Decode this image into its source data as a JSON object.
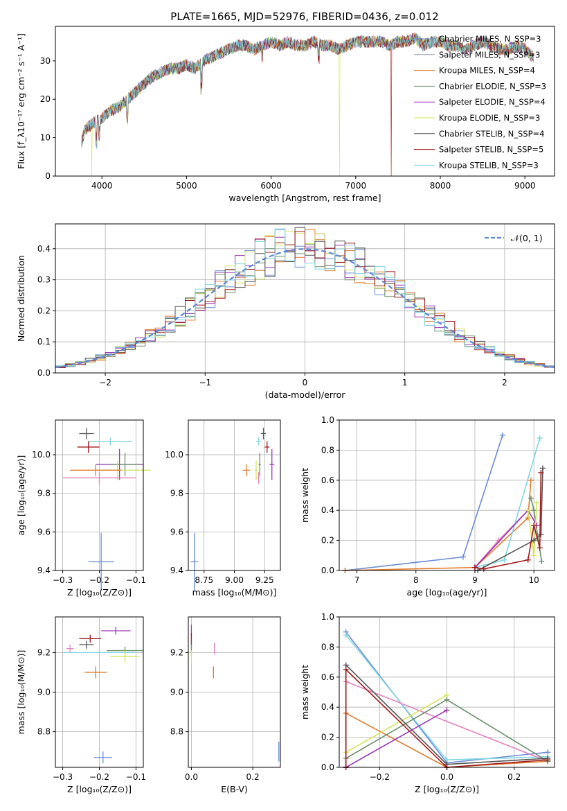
{
  "figure": {
    "title": "PLATE=1665, MJD=52976, FIBERID=0436, z=0.012"
  },
  "chart_data": [
    {
      "type": "line",
      "id": "spectrum",
      "xlabel": "wavelength [Angstrom, rest frame]",
      "ylabel": "Flux [f_λ10⁻¹⁷ erg cm⁻² s⁻¹ A⁻¹]",
      "xlim": [
        3450,
        9350
      ],
      "ylim": [
        0,
        39
      ],
      "xticks": [
        4000,
        5000,
        6000,
        7000,
        8000,
        9000
      ],
      "yticks": [
        0,
        10,
        20,
        30
      ],
      "grid": false,
      "legend_position": "right",
      "continuum": {
        "x": [
          3760,
          3800,
          3900,
          4000,
          4100,
          4200,
          4300,
          4400,
          4500,
          4600,
          4700,
          4800,
          4900,
          5000,
          5100,
          5200,
          5300,
          5400,
          5500,
          5600,
          5700,
          5800,
          5900,
          6000,
          6100,
          6200,
          6300,
          6400,
          6500,
          6600,
          6700,
          6800,
          6900,
          7000,
          7100,
          7200,
          7300,
          7400,
          7500,
          7600,
          7700,
          7800,
          7900,
          8000,
          8100,
          8200,
          8300,
          8400,
          8500,
          8600,
          8700,
          8800,
          8900,
          9000,
          9100
        ],
        "y": [
          9,
          12,
          14,
          15,
          17,
          18,
          20,
          22,
          24,
          26,
          27,
          28,
          28,
          29,
          28,
          30,
          31,
          32,
          33,
          34,
          34,
          33,
          34,
          35,
          34,
          35,
          34,
          34,
          35,
          34,
          34,
          33,
          34,
          35,
          35,
          35,
          35,
          34,
          35,
          35,
          36,
          34,
          35,
          35,
          34,
          34,
          33,
          34,
          35,
          34,
          33,
          33,
          34,
          33,
          31
        ]
      },
      "absorption_dips": [
        {
          "x": 3934,
          "depth": 5
        },
        {
          "x": 3969,
          "depth": 4
        },
        {
          "x": 4300,
          "depth": 5
        },
        {
          "x": 5175,
          "depth": 6
        },
        {
          "x": 5893,
          "depth": 3
        },
        {
          "x": 6563,
          "depth": 3
        }
      ],
      "series": [
        {
          "name": "Chabrier MILES, N_SSP=3",
          "color": "#6a8bd6"
        },
        {
          "name": "Salpeter MILES, N_SSP=3",
          "color": "#9aa0a6"
        },
        {
          "name": "Kroupa MILES, N_SSP=4",
          "color": "#e07b2a"
        },
        {
          "name": "Chabrier ELODIE, N_SSP=3",
          "color": "#6b8f6b"
        },
        {
          "name": "Salpeter ELODIE, N_SSP=4",
          "color": "#9b35b5"
        },
        {
          "name": "Kroupa ELODIE, N_SSP=3",
          "color": "#d4e35a"
        },
        {
          "name": "Chabrier STELIB, N_SSP=4",
          "color": "#555555"
        },
        {
          "name": "Salpeter STELIB, N_SSP=5",
          "color": "#a01a1a"
        },
        {
          "name": "Kroupa STELIB, N_SSP=3",
          "color": "#7fd6e0"
        }
      ],
      "drops": [
        {
          "x": 3880,
          "series": 5
        },
        {
          "x": 6810,
          "series": 5
        },
        {
          "x": 7420,
          "series": 7
        }
      ]
    },
    {
      "type": "histogram",
      "id": "residuals",
      "xlabel": "(data-model)/error",
      "ylabel": "Normed distribution",
      "xlim": [
        -2.5,
        2.5
      ],
      "ylim": [
        0,
        0.48
      ],
      "xticks": [
        -2,
        -1,
        0,
        1,
        2
      ],
      "yticks": [
        0.0,
        0.1,
        0.2,
        0.3,
        0.4
      ],
      "grid": true,
      "legend": "𝒩(0, 1)",
      "gaussian": {
        "mu": 0,
        "sigma": 1,
        "color": "#5b86d6"
      },
      "bin_width": 0.1,
      "bin_start": -2.5,
      "series_colors": [
        "#6a8bd6",
        "#e07b2a",
        "#6b8f6b",
        "#9b35b5",
        "#d4e35a",
        "#555555",
        "#a01a1a",
        "#7fd6e0"
      ]
    },
    {
      "type": "scatter",
      "id": "age-vs-Z",
      "xlabel": "Z [log₁₀(Z/Z⊙)]",
      "ylabel": "age  [log₁₀(age/yr)]",
      "xlim": [
        -0.32,
        -0.08
      ],
      "ylim": [
        9.4,
        10.18
      ],
      "xticks": [
        -0.3,
        -0.2,
        -0.1
      ],
      "yticks": [
        9.4,
        9.6,
        9.8,
        10.0
      ],
      "grid": true,
      "points": [
        {
          "x": -0.235,
          "y": 10.11,
          "xerr": 0.02,
          "yerr": 0.03,
          "color": "#555555"
        },
        {
          "x": -0.17,
          "y": 10.07,
          "xerr": 0.06,
          "yerr": 0.02,
          "color": "#7fd6e0"
        },
        {
          "x": -0.23,
          "y": 10.04,
          "xerr": 0.03,
          "yerr": 0.03,
          "color": "#a01a1a"
        },
        {
          "x": -0.145,
          "y": 9.95,
          "xerr": 0.065,
          "yerr": 0.08,
          "color": "#9b35b5"
        },
        {
          "x": -0.13,
          "y": 9.95,
          "xerr": 0.04,
          "yerr": 0.06,
          "color": "#6b8f6b"
        },
        {
          "x": -0.15,
          "y": 9.92,
          "xerr": 0.09,
          "yerr": 0.05,
          "color": "#d4e35a"
        },
        {
          "x": -0.21,
          "y": 9.92,
          "xerr": 0.07,
          "yerr": 0.03,
          "color": "#e07b2a"
        },
        {
          "x": -0.2,
          "y": 9.88,
          "xerr": 0.1,
          "yerr": 0.03,
          "color": "#e87fbf"
        },
        {
          "x": -0.195,
          "y": 9.445,
          "xerr": 0.035,
          "yerr": 0.15,
          "color": "#6a8bd6"
        }
      ]
    },
    {
      "type": "scatter",
      "id": "age-vs-mass",
      "xlabel": "mass [log₁₀(M/M⊙)]",
      "ylabel": "",
      "xlim": [
        8.62,
        9.38
      ],
      "ylim": [
        9.4,
        10.18
      ],
      "xticks": [
        8.75,
        9.0,
        9.25
      ],
      "yticks": [
        9.4,
        9.6,
        9.8,
        10.0
      ],
      "grid": true,
      "points": [
        {
          "x": 9.24,
          "y": 10.11,
          "xerr": 0.02,
          "yerr": 0.03,
          "color": "#555555"
        },
        {
          "x": 9.2,
          "y": 10.07,
          "xerr": 0.02,
          "yerr": 0.02,
          "color": "#7fd6e0"
        },
        {
          "x": 9.27,
          "y": 10.04,
          "xerr": 0.02,
          "yerr": 0.03,
          "color": "#a01a1a"
        },
        {
          "x": 9.31,
          "y": 9.95,
          "xerr": 0.02,
          "yerr": 0.08,
          "color": "#9b35b5"
        },
        {
          "x": 9.21,
          "y": 9.95,
          "xerr": 0.01,
          "yerr": 0.06,
          "color": "#6b8f6b"
        },
        {
          "x": 9.18,
          "y": 9.92,
          "xerr": 0.01,
          "yerr": 0.05,
          "color": "#d4e35a"
        },
        {
          "x": 9.1,
          "y": 9.92,
          "xerr": 0.03,
          "yerr": 0.03,
          "color": "#e07b2a"
        },
        {
          "x": 9.2,
          "y": 9.88,
          "xerr": 0.01,
          "yerr": 0.03,
          "color": "#e87fbf"
        },
        {
          "x": 8.67,
          "y": 9.445,
          "xerr": 0.03,
          "yerr": 0.15,
          "color": "#6a8bd6"
        }
      ]
    },
    {
      "type": "line",
      "id": "massweight-vs-age",
      "xlabel": "age  [log₁₀(age/yr)]",
      "ylabel": "mass weight",
      "xlim": [
        6.7,
        10.35
      ],
      "ylim": [
        0,
        1
      ],
      "xticks": [
        7,
        8,
        9,
        10
      ],
      "yticks": [
        0.0,
        0.2,
        0.4,
        0.6,
        0.8,
        1.0
      ],
      "grid": true,
      "series": [
        {
          "color": "#6a8bd6",
          "x": [
            6.8,
            8.8,
            9.47
          ],
          "y": [
            0.0,
            0.09,
            0.9
          ]
        },
        {
          "color": "#e07b2a",
          "x": [
            6.8,
            9.0,
            9.9,
            9.95
          ],
          "y": [
            0.0,
            0.02,
            0.35,
            0.6
          ]
        },
        {
          "color": "#e87fbf",
          "x": [
            9.0,
            9.4,
            9.9
          ],
          "y": [
            0.02,
            0.2,
            0.4
          ]
        },
        {
          "color": "#7fd6e0",
          "x": [
            9.0,
            9.5,
            10.1
          ],
          "y": [
            0.02,
            0.07,
            0.88
          ]
        },
        {
          "color": "#6b8f6b",
          "x": [
            9.95,
            10.0,
            10.13
          ],
          "y": [
            0.48,
            0.4,
            0.06
          ]
        },
        {
          "color": "#9b35b5",
          "x": [
            9.0,
            9.9,
            10.05
          ],
          "y": [
            0.02,
            0.4,
            0.3
          ]
        },
        {
          "color": "#d4e35a",
          "x": [
            9.9,
            10.0,
            10.05
          ],
          "y": [
            0.4,
            0.1,
            0.45
          ]
        },
        {
          "color": "#555555",
          "x": [
            9.05,
            10.0,
            10.12,
            10.15
          ],
          "y": [
            0.0,
            0.2,
            0.24,
            0.68
          ]
        },
        {
          "color": "#a01a1a",
          "x": [
            9.0,
            9.15,
            9.9,
            10.0,
            10.1,
            10.12
          ],
          "y": [
            0.02,
            0.01,
            0.07,
            0.3,
            0.15,
            0.65
          ]
        }
      ]
    },
    {
      "type": "scatter",
      "id": "mass-vs-Z",
      "xlabel": "Z [log₁₀(Z/Z⊙)]",
      "ylabel": "mass [log₁₀(M/M⊙)]",
      "xlim": [
        -0.32,
        -0.08
      ],
      "ylim": [
        8.62,
        9.38
      ],
      "xticks": [
        -0.3,
        -0.2,
        -0.1
      ],
      "yticks": [
        8.8,
        9.0,
        9.2
      ],
      "grid": true,
      "points": [
        {
          "x": -0.155,
          "y": 9.31,
          "xerr": 0.04,
          "yerr": 0.02,
          "color": "#9b35b5"
        },
        {
          "x": -0.225,
          "y": 9.27,
          "xerr": 0.03,
          "yerr": 0.02,
          "color": "#a01a1a"
        },
        {
          "x": -0.235,
          "y": 9.24,
          "xerr": 0.02,
          "yerr": 0.02,
          "color": "#555555"
        },
        {
          "x": -0.28,
          "y": 9.22,
          "xerr": 0.01,
          "yerr": 0.02,
          "color": "#e87fbf"
        },
        {
          "x": -0.13,
          "y": 9.21,
          "xerr": 0.05,
          "yerr": 0.02,
          "color": "#6b8f6b"
        },
        {
          "x": -0.2,
          "y": 9.2,
          "xerr": 0.1,
          "yerr": 0.01,
          "color": "#7fd6e0"
        },
        {
          "x": -0.13,
          "y": 9.18,
          "xerr": 0.04,
          "yerr": 0.03,
          "color": "#d4e35a"
        },
        {
          "x": -0.21,
          "y": 9.1,
          "xerr": 0.03,
          "yerr": 0.03,
          "color": "#e07b2a"
        },
        {
          "x": -0.19,
          "y": 8.67,
          "xerr": 0.025,
          "yerr": 0.03,
          "color": "#6a8bd6"
        }
      ]
    },
    {
      "type": "scatter",
      "id": "mass-vs-EBV",
      "xlabel": "E(B-V)",
      "ylabel": "",
      "xlim": [
        -0.01,
        0.29
      ],
      "ylim": [
        8.62,
        9.38
      ],
      "xticks": [
        0.0,
        0.2
      ],
      "yticks": [
        8.8,
        9.0,
        9.2
      ],
      "grid": true,
      "points": [
        {
          "x": 0.0,
          "y": 9.31,
          "xerr": 0.0,
          "yerr": 0.03,
          "color": "#9b35b5"
        },
        {
          "x": 0.0,
          "y": 9.27,
          "xerr": 0.0,
          "yerr": 0.03,
          "color": "#a01a1a"
        },
        {
          "x": 0.0,
          "y": 9.24,
          "xerr": 0.0,
          "yerr": 0.02,
          "color": "#555555"
        },
        {
          "x": 0.075,
          "y": 9.22,
          "xerr": 0.0,
          "yerr": 0.03,
          "color": "#e87fbf"
        },
        {
          "x": 0.0,
          "y": 9.21,
          "xerr": 0.0,
          "yerr": 0.03,
          "color": "#6b8f6b"
        },
        {
          "x": 0.0,
          "y": 9.18,
          "xerr": 0.0,
          "yerr": 0.03,
          "color": "#d4e35a"
        },
        {
          "x": 0.072,
          "y": 9.1,
          "xerr": 0.0,
          "yerr": 0.03,
          "color": "#e07b2a"
        },
        {
          "x": 0.285,
          "y": 8.7,
          "xerr": 0.0,
          "yerr": 0.05,
          "color": "#6a8bd6"
        }
      ]
    },
    {
      "type": "line",
      "id": "massweight-vs-Z",
      "xlabel": "Z [log₁₀(Z/Z⊙)]",
      "ylabel": "mass weight",
      "xlim": [
        -0.32,
        0.32
      ],
      "ylim": [
        0,
        1
      ],
      "xticks": [
        -0.2,
        0.0,
        0.2
      ],
      "yticks": [
        0.0,
        0.2,
        0.4,
        0.6,
        0.8,
        1.0
      ],
      "grid": true,
      "series": [
        {
          "color": "#6a8bd6",
          "x": [
            -0.3,
            0.0,
            0.3
          ],
          "y": [
            0.9,
            0.03,
            0.1
          ]
        },
        {
          "color": "#7fd6e0",
          "x": [
            -0.3,
            0.0,
            0.3
          ],
          "y": [
            0.88,
            0.05,
            0.07
          ]
        },
        {
          "color": "#e87fbf",
          "x": [
            -0.3,
            0.3
          ],
          "y": [
            0.57,
            0.04
          ]
        },
        {
          "color": "#e07b2a",
          "x": [
            -0.3,
            -0.3,
            0.0,
            0.3
          ],
          "y": [
            0.0,
            0.36,
            0.0,
            0.04
          ]
        },
        {
          "color": "#d4e35a",
          "x": [
            -0.3,
            0.0
          ],
          "y": [
            0.1,
            0.48
          ]
        },
        {
          "color": "#6b8f6b",
          "x": [
            -0.3,
            0.0,
            0.3
          ],
          "y": [
            0.06,
            0.45,
            0.04
          ]
        },
        {
          "color": "#9b35b5",
          "x": [
            -0.3,
            0.0
          ],
          "y": [
            0.0,
            0.38
          ]
        },
        {
          "color": "#555555",
          "x": [
            -0.3,
            -0.3,
            0.0,
            0.3
          ],
          "y": [
            0.0,
            0.68,
            0.02,
            0.06
          ]
        },
        {
          "color": "#a01a1a",
          "x": [
            -0.3,
            -0.3,
            0.0,
            0.3
          ],
          "y": [
            0.0,
            0.65,
            0.0,
            0.05
          ]
        }
      ]
    }
  ]
}
